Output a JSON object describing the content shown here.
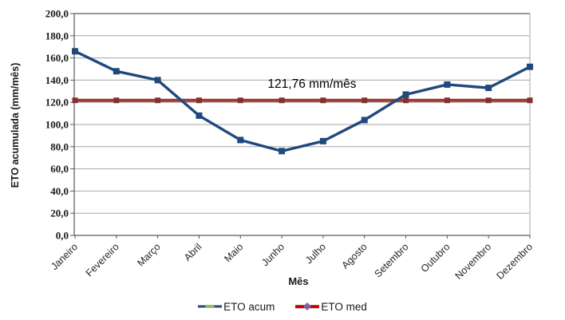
{
  "chart_data": {
    "type": "line",
    "title": "",
    "xlabel": "Mês",
    "ylabel": "ETO acumulada (mm/mês)",
    "ylim": [
      0,
      200
    ],
    "ytick_step": 20,
    "ytick_labels": [
      "0,0",
      "20,0",
      "40,0",
      "60,0",
      "80,0",
      "100,0",
      "120,0",
      "140,0",
      "160,0",
      "180,0",
      "200,0"
    ],
    "categories": [
      "Janeiro",
      "Fevereiro",
      "Março",
      "Abril",
      "Maio",
      "Junho",
      "Julho",
      "Agosto",
      "Setembro",
      "Outubro",
      "Novembro",
      "Dezembro"
    ],
    "series": [
      {
        "name": "ETO acum",
        "values": [
          166,
          148,
          140,
          108,
          86,
          76,
          85,
          104,
          127,
          136,
          133,
          152
        ],
        "color": "#1F497D",
        "marker": "square"
      },
      {
        "name": "ETO med",
        "constant": 121.76,
        "color": "#9E3A37",
        "marker_color": "#84302C",
        "marker": "square"
      }
    ],
    "annotation": {
      "text": "121,76 mm/mês",
      "value": 121.76
    },
    "grid": true,
    "legend_position": "bottom",
    "colors": {
      "gridline": "#A6A6A6",
      "axis": "#595959",
      "plot_border": "#A6A6A6",
      "legend_acum_dash": "#9BBB59",
      "legend_med_diamond": "#7E62A1",
      "legend_med_line": "#C00000"
    }
  }
}
